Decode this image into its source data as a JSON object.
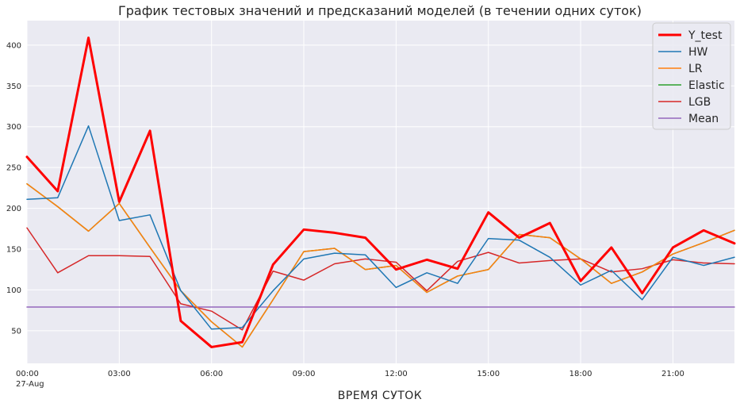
{
  "chart_data": {
    "type": "line",
    "title": "График тестовых значений и предсказаний моделей (в течении одних суток)",
    "xlabel": "ВРЕМЯ СУТОК",
    "ylabel": "",
    "x": [
      "00:00",
      "01:00",
      "02:00",
      "03:00",
      "04:00",
      "05:00",
      "06:00",
      "07:00",
      "08:00",
      "09:00",
      "10:00",
      "11:00",
      "12:00",
      "13:00",
      "14:00",
      "15:00",
      "16:00",
      "17:00",
      "18:00",
      "19:00",
      "20:00",
      "21:00",
      "22:00",
      "23:00"
    ],
    "xlim": [
      0,
      23
    ],
    "ylim": [
      10,
      430
    ],
    "x_ticks": [
      {
        "pos": 0,
        "label": "00:00",
        "sublabel": "27-Aug"
      },
      {
        "pos": 3,
        "label": "03:00"
      },
      {
        "pos": 6,
        "label": "06:00"
      },
      {
        "pos": 9,
        "label": "09:00"
      },
      {
        "pos": 12,
        "label": "12:00"
      },
      {
        "pos": 15,
        "label": "15:00"
      },
      {
        "pos": 18,
        "label": "18:00"
      },
      {
        "pos": 21,
        "label": "21:00"
      }
    ],
    "y_ticks": [
      50,
      100,
      150,
      200,
      250,
      300,
      350,
      400
    ],
    "grid": true,
    "background": "#eaeaf2",
    "legend_position": "top-right",
    "series": [
      {
        "name": "Y_test",
        "color": "#ff0000",
        "width": 3,
        "values": [
          263,
          221,
          409,
          208,
          295,
          62,
          30,
          36,
          131,
          174,
          170,
          164,
          125,
          137,
          126,
          195,
          164,
          182,
          111,
          152,
          96,
          152,
          173,
          157
        ]
      },
      {
        "name": "HW",
        "color": "#1f77b4",
        "width": 1.5,
        "values": [
          211,
          213,
          301,
          185,
          192,
          99,
          52,
          54,
          99,
          138,
          145,
          143,
          103,
          121,
          108,
          163,
          161,
          140,
          106,
          124,
          88,
          140,
          130,
          140
        ]
      },
      {
        "name": "LR",
        "color": "#ff7f0e",
        "width": 1.5,
        "values": [
          230,
          202,
          172,
          206,
          152,
          99,
          61,
          30,
          88,
          147,
          151,
          125,
          130,
          97,
          117,
          125,
          168,
          164,
          138,
          108,
          122,
          144,
          158,
          173
        ]
      },
      {
        "name": "Elastic",
        "color": "#2ca02c",
        "width": 1.5,
        "values": [
          230,
          202,
          172,
          206,
          152,
          99,
          61,
          30,
          88,
          147,
          151,
          125,
          130,
          97,
          117,
          125,
          168,
          164,
          138,
          108,
          122,
          144,
          158,
          173
        ]
      },
      {
        "name": "LGB",
        "color": "#d62728",
        "width": 1.5,
        "values": [
          176,
          121,
          142,
          142,
          141,
          83,
          74,
          51,
          123,
          112,
          132,
          138,
          134,
          99,
          135,
          146,
          133,
          136,
          138,
          122,
          126,
          137,
          133,
          132
        ]
      },
      {
        "name": "Mean",
        "color": "#9467bd",
        "width": 1.5,
        "values": [
          79,
          79,
          79,
          79,
          79,
          79,
          79,
          79,
          79,
          79,
          79,
          79,
          79,
          79,
          79,
          79,
          79,
          79,
          79,
          79,
          79,
          79,
          79,
          79
        ]
      }
    ]
  }
}
